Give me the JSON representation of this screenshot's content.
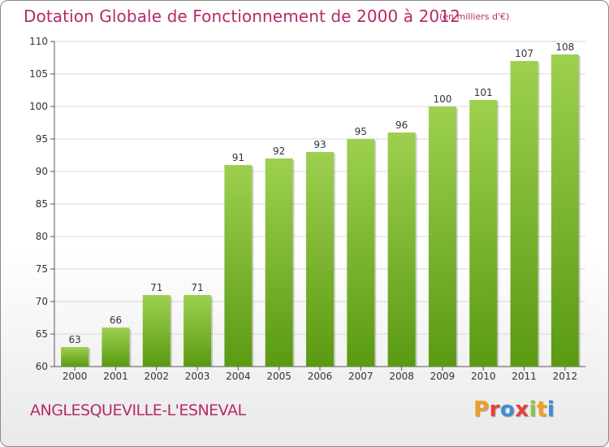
{
  "header": {
    "title": "Dotation Globale de Fonctionnement de 2000 à 2012",
    "unit": "(en milliers d'€)"
  },
  "footer": {
    "place": "ANGLESQUEVILLE-L'ESNEVAL",
    "logo": "Proxiti",
    "logo_colors": [
      "#f0a020",
      "#e8403a",
      "#3b8fd6",
      "#e8403a",
      "#8cc63f",
      "#f0a020",
      "#3b8fd6"
    ]
  },
  "colors": {
    "title": "#b52a6a",
    "bar_top": "#9ed050",
    "bar_bottom": "#5a9a12",
    "grid": "#d8d8d8",
    "axis": "#555555"
  },
  "chart_data": {
    "type": "bar",
    "title": "Dotation Globale de Fonctionnement de 2000 à 2012",
    "unit": "(en milliers d'€)",
    "xlabel": "",
    "ylabel": "",
    "categories": [
      "2000",
      "2001",
      "2002",
      "2003",
      "2004",
      "2005",
      "2006",
      "2007",
      "2008",
      "2009",
      "2010",
      "2011",
      "2012"
    ],
    "values": [
      63,
      66,
      71,
      71,
      91,
      92,
      93,
      95,
      96,
      100,
      101,
      107,
      108
    ],
    "ylim": [
      60,
      110
    ],
    "yticks": [
      60,
      65,
      70,
      75,
      80,
      85,
      90,
      95,
      100,
      105,
      110
    ],
    "grid": true
  }
}
